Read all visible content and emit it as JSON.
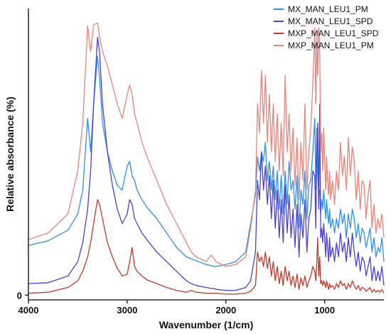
{
  "chart_data": {
    "type": "line",
    "title": "",
    "xlabel": "Wavenumber (1/cm)",
    "ylabel": "Relative absorbance (%)",
    "xlim": [
      4000,
      400
    ],
    "ylim": [
      -5,
      300
    ],
    "x_reversed": true,
    "x_ticks": [
      4000,
      3000,
      2000,
      1000
    ],
    "y_ticks": [
      0
    ],
    "grid": false,
    "legend_position": "top-right",
    "series": [
      {
        "name": "MX_MAN_LEU1_PM",
        "color": "#2f8fe8",
        "x": [
          4000,
          3800,
          3600,
          3500,
          3450,
          3400,
          3370,
          3340,
          3300,
          3280,
          3250,
          3200,
          3150,
          3100,
          3050,
          3000,
          2975,
          2950,
          2925,
          2900,
          2850,
          2800,
          2700,
          2600,
          2500,
          2400,
          2350,
          2300,
          2200,
          2150,
          2120,
          2100,
          2000,
          1900,
          1800,
          1750,
          1700,
          1680,
          1660,
          1640,
          1620,
          1600,
          1580,
          1560,
          1540,
          1520,
          1500,
          1480,
          1460,
          1440,
          1420,
          1400,
          1380,
          1360,
          1340,
          1320,
          1300,
          1280,
          1260,
          1240,
          1220,
          1200,
          1180,
          1160,
          1140,
          1120,
          1100,
          1090,
          1080,
          1070,
          1060,
          1050,
          1040,
          1030,
          1020,
          1010,
          1000,
          990,
          980,
          970,
          960,
          950,
          940,
          920,
          900,
          880,
          860,
          840,
          820,
          800,
          780,
          760,
          740,
          720,
          700,
          680,
          660,
          640,
          620,
          600,
          580,
          560,
          540,
          520,
          500,
          480,
          460,
          440,
          420,
          400
        ],
        "y": [
          52,
          57,
          68,
          85,
          110,
          185,
          150,
          200,
          250,
          228,
          180,
          150,
          130,
          115,
          110,
          135,
          140,
          125,
          120,
          110,
          100,
          92,
          80,
          65,
          50,
          40,
          38,
          36,
          32,
          31,
          30,
          30,
          32,
          35,
          45,
          75,
          105,
          145,
          130,
          150,
          140,
          160,
          120,
          140,
          110,
          135,
          100,
          130,
          90,
          125,
          85,
          130,
          95,
          140,
          110,
          120,
          90,
          125,
          70,
          110,
          95,
          130,
          80,
          115,
          120,
          150,
          185,
          110,
          175,
          125,
          105,
          110,
          85,
          100,
          90,
          110,
          95,
          80,
          100,
          85,
          75,
          90,
          70,
          80,
          65,
          80,
          70,
          90,
          75,
          85,
          60,
          85,
          70,
          90,
          80,
          60,
          75,
          55,
          70,
          65,
          50,
          60,
          70,
          45,
          60,
          40,
          50,
          45,
          60,
          35
        ]
      },
      {
        "name": "MX_MAN_LEU1_SPD",
        "color": "#4b3fd6",
        "x": [
          4000,
          3800,
          3600,
          3500,
          3450,
          3400,
          3370,
          3340,
          3300,
          3280,
          3250,
          3200,
          3150,
          3100,
          3050,
          3000,
          2975,
          2950,
          2925,
          2900,
          2850,
          2800,
          2700,
          2600,
          2500,
          2400,
          2350,
          2300,
          2200,
          2150,
          2120,
          2100,
          2000,
          1900,
          1800,
          1750,
          1700,
          1680,
          1660,
          1640,
          1620,
          1600,
          1580,
          1560,
          1540,
          1520,
          1500,
          1480,
          1460,
          1440,
          1420,
          1400,
          1380,
          1360,
          1340,
          1320,
          1300,
          1280,
          1260,
          1240,
          1220,
          1200,
          1180,
          1160,
          1140,
          1120,
          1100,
          1090,
          1080,
          1070,
          1060,
          1050,
          1040,
          1030,
          1020,
          1010,
          1000,
          990,
          980,
          970,
          960,
          950,
          940,
          920,
          900,
          880,
          860,
          840,
          820,
          800,
          780,
          760,
          740,
          720,
          700,
          680,
          660,
          640,
          620,
          600,
          580,
          560,
          540,
          520,
          500,
          480,
          460,
          440,
          420,
          400
        ],
        "y": [
          12,
          13,
          20,
          35,
          55,
          90,
          130,
          200,
          270,
          255,
          200,
          150,
          115,
          90,
          75,
          85,
          100,
          95,
          80,
          75,
          65,
          58,
          45,
          35,
          25,
          15,
          12,
          10,
          8,
          7,
          7,
          6,
          5,
          5,
          8,
          15,
          45,
          120,
          100,
          150,
          110,
          135,
          95,
          125,
          80,
          120,
          70,
          110,
          60,
          100,
          55,
          115,
          65,
          105,
          60,
          90,
          50,
          95,
          40,
          85,
          60,
          100,
          45,
          80,
          90,
          130,
          125,
          70,
          150,
          180,
          90,
          200,
          60,
          70,
          55,
          75,
          60,
          40,
          65,
          50,
          35,
          60,
          40,
          50,
          35,
          55,
          40,
          65,
          45,
          55,
          35,
          60,
          40,
          65,
          45,
          30,
          45,
          25,
          40,
          35,
          20,
          30,
          40,
          15,
          30,
          15,
          25,
          15,
          30,
          10
        ]
      },
      {
        "name": "MXP_MAN_LEU1_SPD",
        "color": "#c0392b",
        "x": [
          4000,
          3800,
          3600,
          3500,
          3450,
          3400,
          3370,
          3340,
          3300,
          3280,
          3250,
          3200,
          3150,
          3100,
          3050,
          3000,
          2975,
          2950,
          2925,
          2900,
          2850,
          2800,
          2700,
          2600,
          2500,
          2400,
          2350,
          2300,
          2200,
          2150,
          2120,
          2100,
          2000,
          1900,
          1800,
          1750,
          1700,
          1680,
          1660,
          1640,
          1620,
          1600,
          1580,
          1560,
          1540,
          1520,
          1500,
          1480,
          1460,
          1440,
          1420,
          1400,
          1380,
          1360,
          1340,
          1320,
          1300,
          1280,
          1260,
          1240,
          1220,
          1200,
          1180,
          1160,
          1140,
          1120,
          1100,
          1090,
          1080,
          1070,
          1060,
          1050,
          1040,
          1030,
          1020,
          1010,
          1000,
          990,
          980,
          970,
          960,
          950,
          940,
          920,
          900,
          880,
          860,
          840,
          820,
          800,
          780,
          760,
          740,
          720,
          700,
          680,
          660,
          640,
          620,
          600,
          580,
          560,
          540,
          520,
          500,
          480,
          460,
          440,
          420,
          400
        ],
        "y": [
          2,
          3,
          8,
          15,
          25,
          40,
          55,
          75,
          100,
          95,
          80,
          55,
          40,
          28,
          20,
          22,
          35,
          50,
          30,
          25,
          20,
          16,
          12,
          8,
          5,
          3,
          5,
          3,
          2,
          2,
          2,
          2,
          1,
          1,
          2,
          4,
          10,
          45,
          35,
          40,
          30,
          45,
          28,
          40,
          20,
          35,
          15,
          30,
          12,
          25,
          10,
          30,
          15,
          25,
          10,
          20,
          8,
          22,
          6,
          18,
          10,
          20,
          8,
          15,
          20,
          30,
          25,
          15,
          35,
          60,
          20,
          40,
          12,
          15,
          10,
          15,
          12,
          8,
          15,
          10,
          6,
          12,
          8,
          10,
          6,
          12,
          8,
          15,
          10,
          12,
          6,
          12,
          8,
          15,
          10,
          6,
          10,
          5,
          8,
          7,
          4,
          6,
          8,
          3,
          6,
          3,
          5,
          3,
          6,
          2
        ]
      },
      {
        "name": "MXP_MAN_LEU1_PM",
        "color": "#e8847a",
        "x": [
          4000,
          3800,
          3600,
          3500,
          3450,
          3400,
          3370,
          3340,
          3300,
          3280,
          3250,
          3200,
          3150,
          3100,
          3050,
          3000,
          2975,
          2950,
          2925,
          2900,
          2850,
          2800,
          2700,
          2600,
          2500,
          2400,
          2350,
          2300,
          2200,
          2150,
          2120,
          2100,
          2000,
          1900,
          1800,
          1750,
          1700,
          1680,
          1660,
          1640,
          1620,
          1600,
          1580,
          1560,
          1540,
          1520,
          1500,
          1480,
          1460,
          1440,
          1420,
          1400,
          1380,
          1360,
          1340,
          1320,
          1300,
          1280,
          1260,
          1240,
          1220,
          1200,
          1180,
          1160,
          1140,
          1120,
          1100,
          1090,
          1080,
          1070,
          1060,
          1050,
          1040,
          1030,
          1020,
          1010,
          1000,
          990,
          980,
          970,
          960,
          950,
          940,
          920,
          900,
          880,
          860,
          840,
          820,
          800,
          780,
          760,
          740,
          720,
          700,
          680,
          660,
          640,
          620,
          600,
          580,
          560,
          540,
          520,
          500,
          480,
          460,
          440,
          420,
          400
        ],
        "y": [
          58,
          65,
          85,
          130,
          180,
          282,
          255,
          283,
          285,
          270,
          255,
          240,
          220,
          200,
          185,
          210,
          220,
          210,
          190,
          180,
          160,
          145,
          120,
          95,
          75,
          55,
          45,
          40,
          35,
          42,
          38,
          35,
          30,
          32,
          40,
          70,
          110,
          200,
          170,
          235,
          180,
          230,
          160,
          210,
          150,
          200,
          140,
          190,
          130,
          180,
          125,
          230,
          150,
          190,
          130,
          175,
          115,
          165,
          100,
          160,
          120,
          200,
          110,
          150,
          175,
          220,
          280,
          200,
          270,
          230,
          280,
          260,
          150,
          170,
          130,
          175,
          140,
          110,
          145,
          120,
          105,
          130,
          100,
          120,
          95,
          130,
          110,
          160,
          125,
          145,
          110,
          165,
          125,
          155,
          140,
          100,
          130,
          90,
          120,
          115,
          80,
          105,
          120,
          70,
          95,
          65,
          80,
          70,
          85,
          60
        ]
      }
    ]
  }
}
